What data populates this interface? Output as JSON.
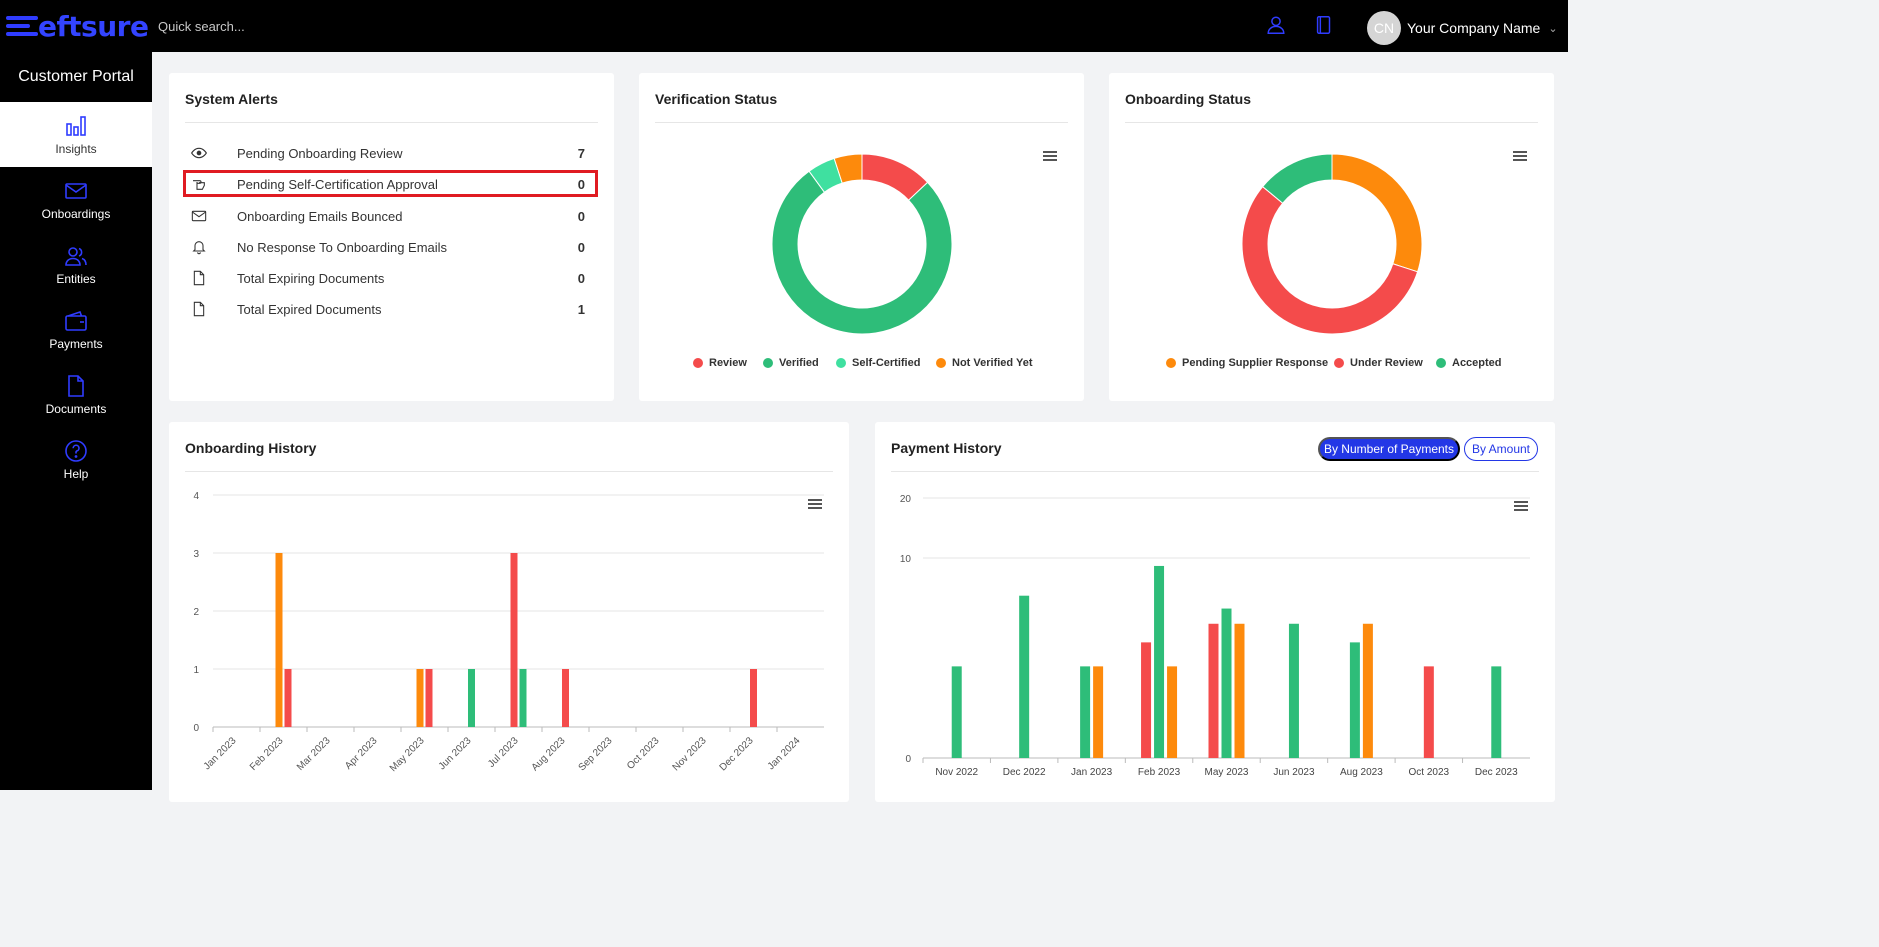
{
  "brand": {
    "logo_text": "eftsure",
    "accent": "#2f3cff"
  },
  "topbar": {
    "search_placeholder": "Quick search...",
    "user_icon": "user-icon",
    "book_icon": "book-icon",
    "avatar_initials": "CN",
    "company_name": "Your Company Name"
  },
  "sidebar": {
    "title": "Customer Portal",
    "items": [
      {
        "label": "Insights",
        "icon": "bar-chart-icon",
        "active": true
      },
      {
        "label": "Onboardings",
        "icon": "envelope-icon",
        "active": false
      },
      {
        "label": "Entities",
        "icon": "users-icon",
        "active": false
      },
      {
        "label": "Payments",
        "icon": "wallet-icon",
        "active": false
      },
      {
        "label": "Documents",
        "icon": "document-icon",
        "active": false
      },
      {
        "label": "Help",
        "icon": "help-icon",
        "active": false
      }
    ]
  },
  "system_alerts": {
    "title": "System Alerts",
    "rows": [
      {
        "label": "Pending Onboarding Review",
        "count": "7",
        "icon": "eye-icon"
      },
      {
        "label": "Pending Self-Certification Approval",
        "count": "0",
        "icon": "hand-pointer-icon"
      },
      {
        "label": "Onboarding Emails Bounced",
        "count": "0",
        "icon": "envelope-icon"
      },
      {
        "label": "No Response To Onboarding Emails",
        "count": "0",
        "icon": "bell-icon"
      },
      {
        "label": "Total Expiring Documents",
        "count": "0",
        "icon": "file-icon"
      },
      {
        "label": "Total Expired Documents",
        "count": "1",
        "icon": "file-icon"
      }
    ]
  },
  "verification_status": {
    "title": "Verification Status",
    "legend": [
      {
        "label": "Review",
        "color": "#f44b4b"
      },
      {
        "label": "Verified",
        "color": "#2ebd79"
      },
      {
        "label": "Self-Certified",
        "color": "#3fe0a0"
      },
      {
        "label": "Not Verified Yet",
        "color": "#fd8a0c"
      }
    ]
  },
  "onboarding_status": {
    "title": "Onboarding Status",
    "legend": [
      {
        "label": "Pending Supplier Response",
        "color": "#fd8a0c"
      },
      {
        "label": "Under Review",
        "color": "#f44b4b"
      },
      {
        "label": "Accepted",
        "color": "#2ebd79"
      }
    ]
  },
  "onboarding_history": {
    "title": "Onboarding History"
  },
  "payment_history": {
    "title": "Payment History",
    "toggle_on": "By Number of Payments",
    "toggle_off": "By Amount"
  },
  "chart_data": [
    {
      "type": "pie",
      "title": "Verification Status",
      "donut": true,
      "categories": [
        "Review",
        "Verified",
        "Self-Certified",
        "Not Verified Yet"
      ],
      "values": [
        13,
        77,
        5,
        5
      ],
      "colors": [
        "#f44b4b",
        "#2ebd79",
        "#3fe0a0",
        "#fd8a0c"
      ]
    },
    {
      "type": "pie",
      "title": "Onboarding Status",
      "donut": true,
      "categories": [
        "Pending Supplier Response",
        "Under Review",
        "Accepted"
      ],
      "values": [
        30,
        56,
        14
      ],
      "colors": [
        "#fd8a0c",
        "#f44b4b",
        "#2ebd79"
      ]
    },
    {
      "type": "bar",
      "title": "Onboarding History",
      "categories": [
        "Jan 2023",
        "Feb 2023",
        "Mar 2023",
        "Apr 2023",
        "May 2023",
        "Jun 2023",
        "Jul 2023",
        "Aug 2023",
        "Sep 2023",
        "Oct 2023",
        "Nov 2023",
        "Dec 2023",
        "Jan 2024"
      ],
      "ylim": [
        0,
        4
      ],
      "yticks": [
        0,
        1,
        2,
        3,
        4
      ],
      "series": [
        {
          "color": "#fd8a0c",
          "values": [
            0,
            3,
            0,
            0,
            1,
            0,
            0,
            0,
            0,
            0,
            0,
            0,
            0
          ]
        },
        {
          "color": "#f44b4b",
          "values": [
            0,
            1,
            0,
            0,
            1,
            0,
            3,
            1,
            0,
            0,
            0,
            1,
            0
          ]
        },
        {
          "color": "#2ebd79",
          "values": [
            0,
            0,
            0,
            0,
            0,
            1,
            1,
            0,
            0,
            0,
            0,
            0,
            0
          ]
        }
      ]
    },
    {
      "type": "bar",
      "title": "Payment History",
      "log_scale": true,
      "categories": [
        "Nov 2022",
        "Dec 2022",
        "Jan 2023",
        "Feb 2023",
        "May 2023",
        "Jun 2023",
        "Aug 2023",
        "Oct 2023",
        "Dec 2023"
      ],
      "yticks": [
        0,
        10,
        20
      ],
      "series": [
        {
          "color": "#f44b4b",
          "values": [
            0,
            0,
            0,
            3,
            4,
            0,
            0,
            2,
            0
          ]
        },
        {
          "color": "#2ebd79",
          "values": [
            2,
            6,
            2,
            9,
            5,
            4,
            3,
            0,
            2
          ]
        },
        {
          "color": "#fd8a0c",
          "values": [
            0,
            0,
            2,
            2,
            4,
            0,
            4,
            0,
            0
          ]
        }
      ]
    }
  ]
}
